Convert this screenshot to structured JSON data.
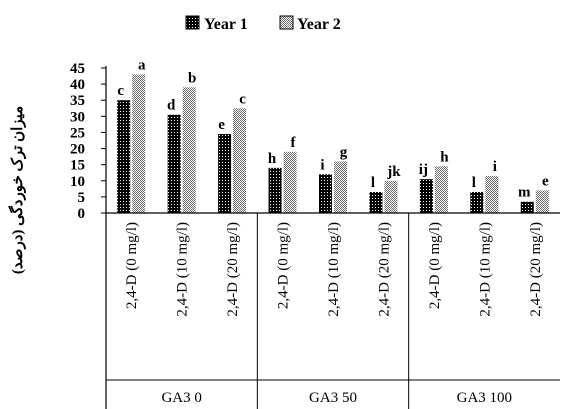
{
  "chart_data": {
    "type": "bar",
    "title": "",
    "xlabel": "",
    "ylabel": "میزان ترک خوردگی (درصد)",
    "ylim": [
      0,
      45
    ],
    "yticks": [
      0,
      5,
      10,
      15,
      20,
      25,
      30,
      35,
      40,
      45
    ],
    "grid": false,
    "legend_position": "top",
    "categories": [
      "2,4-D (0 mg/l)",
      "2,4-D (10 mg/l)",
      "2,4-D (20 mg/l)",
      "2,4-D (0 mg/l)",
      "2,4-D (10 mg/l)",
      "2,4-D (20 mg/l)",
      "2,4-D (0 mg/l)",
      "2,4-D (10 mg/l)",
      "2,4-D (20 mg/l)"
    ],
    "groups": [
      {
        "label": "GA3 0",
        "span": [
          0,
          2
        ]
      },
      {
        "label": "GA3 50",
        "span": [
          3,
          5
        ]
      },
      {
        "label": "GA3 100",
        "span": [
          6,
          8
        ]
      }
    ],
    "series": [
      {
        "name": "Year 1",
        "pattern": "dots-dark",
        "values": [
          35,
          30.5,
          24.5,
          14,
          12,
          6.5,
          10.5,
          6.5,
          3.5
        ],
        "labels": [
          "c",
          "d",
          "e",
          "h",
          "i",
          "l",
          "ij",
          "l",
          "m"
        ]
      },
      {
        "name": "Year 2",
        "pattern": "checker-light",
        "values": [
          43,
          39,
          32.5,
          19,
          16,
          10,
          14.5,
          11.5,
          7
        ],
        "labels": [
          "a",
          "b",
          "c",
          "f",
          "g",
          "jk",
          "h",
          "i",
          "e"
        ]
      }
    ]
  },
  "colors": {
    "series1": "#000000",
    "series2": "#8a8a8a",
    "axis": "#000000"
  }
}
